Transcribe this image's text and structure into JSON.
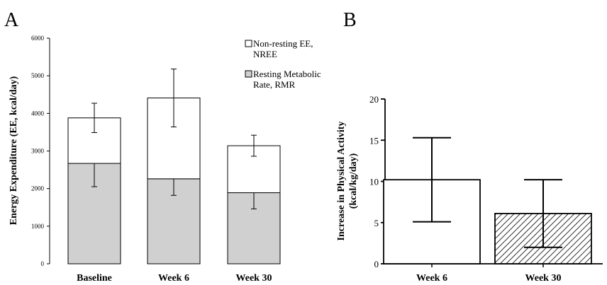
{
  "panels": {
    "a_label": "A",
    "b_label": "B"
  },
  "chart_data": [
    {
      "type": "bar",
      "stacked": true,
      "panel": "A",
      "categories": [
        "Baseline",
        "Week 6",
        "Week 30"
      ],
      "ylabel": "Energy Expenditure (EE, kcal/day)",
      "xlabel": "",
      "ylim": [
        0,
        6000
      ],
      "yticks": [
        0,
        1000,
        2000,
        3000,
        4000,
        5000,
        6000
      ],
      "series": [
        {
          "name": "Resting Metabolic Rate, RMR",
          "legend_lines": [
            "Resting Metabolic",
            "Rate, RMR"
          ],
          "values": [
            2670,
            2260,
            1890
          ],
          "errors": [
            620,
            440,
            430
          ],
          "fill": "#d0d0d0"
        },
        {
          "name": "Non-resting EE, NREE",
          "legend_lines": [
            "Non-resting EE,",
            "NREE"
          ],
          "values": [
            1210,
            2150,
            1250
          ],
          "errors": [
            390,
            770,
            280
          ],
          "fill": "#ffffff"
        }
      ],
      "legend_position": "top-right",
      "grid": false
    },
    {
      "type": "bar",
      "panel": "B",
      "categories": [
        "Week 6",
        "Week 30"
      ],
      "values": [
        10.2,
        6.1
      ],
      "errors": [
        5.1,
        4.1
      ],
      "fills": [
        "#ffffff",
        "hatched"
      ],
      "ylabel_lines": [
        "Increase in Physical Activity",
        "(kcal/kg/day)"
      ],
      "xlabel": "",
      "ylim": [
        0,
        20
      ],
      "yticks": [
        0,
        5,
        10,
        15,
        20
      ],
      "grid": false
    }
  ]
}
